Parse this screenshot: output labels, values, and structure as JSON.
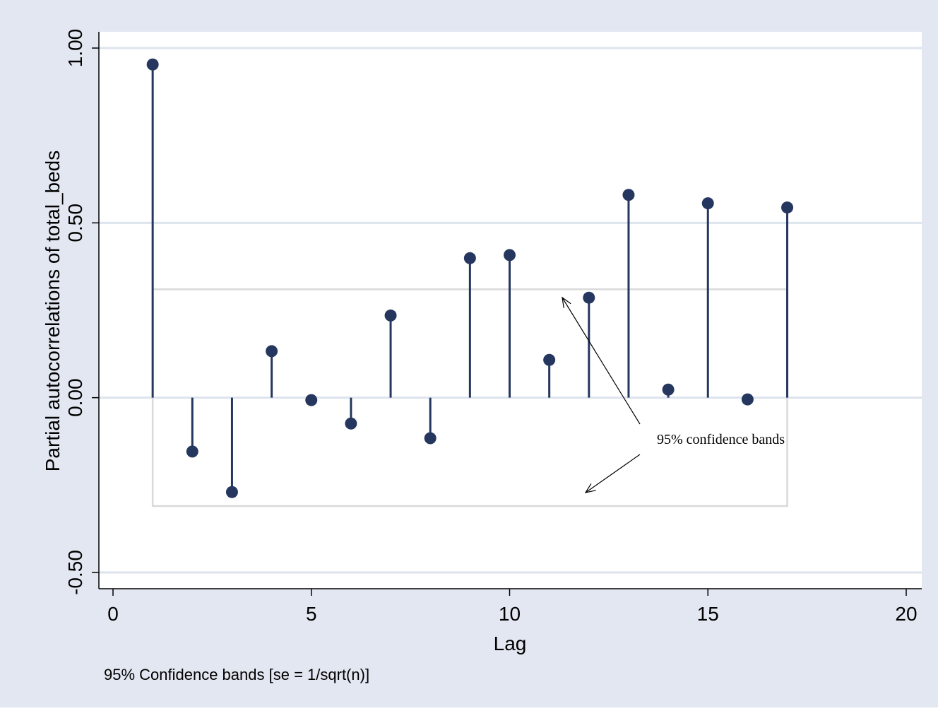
{
  "chart_data": {
    "type": "scatter",
    "style": "stem (needle) plot with confidence band",
    "ylabel": "Partial autocorrelations of total_beds",
    "xlabel": "Lag",
    "note": "95% Confidence bands [se = 1/sqrt(n)]",
    "annotation": "95% confidence bands",
    "xlim": [
      0,
      20
    ],
    "ylim": [
      -0.5,
      1.0
    ],
    "x_ticks": [
      0,
      5,
      10,
      15,
      20
    ],
    "x_tick_labels": [
      "0",
      "5",
      "10",
      "15",
      "20"
    ],
    "y_ticks": [
      -0.5,
      0,
      0.5,
      1.0
    ],
    "y_tick_labels": [
      "-0.50",
      "0.00",
      "0.50",
      "1.00"
    ],
    "grid": true,
    "confidence_band": {
      "upper": 0.31,
      "lower": -0.31,
      "lag_from": 1,
      "lag_to": 17
    },
    "series": [
      {
        "lags": [
          1,
          2,
          3,
          4,
          5,
          6,
          7,
          8,
          9,
          10,
          11,
          12,
          13,
          14,
          15,
          16,
          17
        ],
        "values": [
          0.953,
          -0.154,
          -0.27,
          0.133,
          -0.007,
          -0.074,
          0.235,
          -0.116,
          0.399,
          0.408,
          0.108,
          0.286,
          0.58,
          0.023,
          0.556,
          -0.005,
          0.544
        ]
      }
    ],
    "colors": {
      "outer_background": "#e3e7f1",
      "plot_background": "#ffffff",
      "grid": "#dde4ee",
      "marker": "#26375f",
      "band": "#d9d9d9",
      "axis": "#000000"
    }
  }
}
